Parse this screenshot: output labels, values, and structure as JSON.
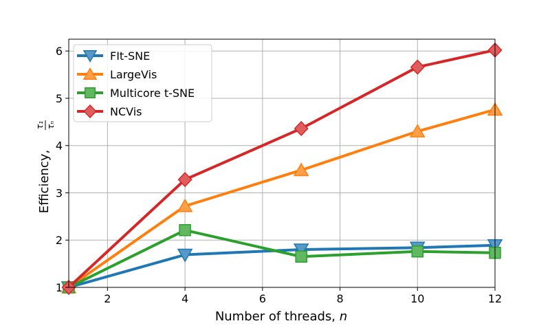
{
  "chart_data": {
    "type": "line",
    "xlabel": "Number of threads, ",
    "xlabel_var": "n",
    "ylabel": "Efficiency, ",
    "ylabel_frac": {
      "numerator": "τ₁",
      "denominator": "τₙ"
    },
    "xlim": [
      1,
      12
    ],
    "ylim": [
      1,
      6.25
    ],
    "xticks": [
      2,
      4,
      6,
      8,
      10,
      12
    ],
    "yticks": [
      1,
      2,
      3,
      4,
      5,
      6
    ],
    "grid": true,
    "legend_position": "top-left",
    "x": [
      1,
      4,
      7,
      10,
      12
    ],
    "series": [
      {
        "name": "FIt-SNE",
        "color": "#1f77b4",
        "marker": "triangle-down",
        "values": [
          1.0,
          1.69,
          1.8,
          1.84,
          1.89
        ]
      },
      {
        "name": "LargeVis",
        "color": "#ff7f0e",
        "marker": "triangle-up",
        "values": [
          1.0,
          2.72,
          3.48,
          4.3,
          4.76
        ]
      },
      {
        "name": "Multicore t-SNE",
        "color": "#2ca02c",
        "marker": "square",
        "values": [
          1.0,
          2.21,
          1.65,
          1.76,
          1.73
        ]
      },
      {
        "name": "NCVis",
        "color": "#d62728",
        "marker": "diamond",
        "values": [
          1.0,
          3.28,
          4.36,
          5.66,
          6.02
        ]
      }
    ]
  }
}
